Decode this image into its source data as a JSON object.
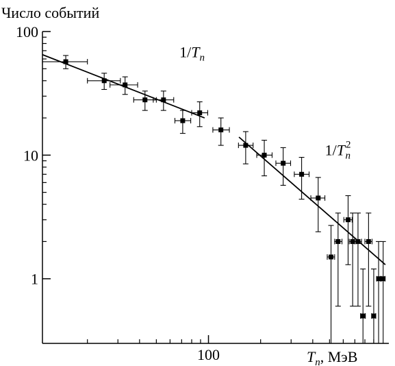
{
  "chart_data": {
    "type": "scatter",
    "ylabel": "Число событий",
    "xlabel_symbol": "T",
    "xlabel_subscript": "n",
    "xlabel_unit": ", МэВ",
    "x_scale": "log",
    "y_scale": "log",
    "xlim": [
      11,
      1100
    ],
    "ylim": [
      0.3,
      100
    ],
    "x_ticks": [
      {
        "value": 100,
        "label": "100"
      }
    ],
    "x_minor_ticks": [
      20,
      30,
      40,
      50,
      60,
      70,
      80,
      90,
      200,
      300,
      400,
      500,
      600,
      700,
      800,
      900
    ],
    "y_ticks": [
      {
        "value": 1,
        "label": "1"
      },
      {
        "value": 10,
        "label": "10"
      },
      {
        "value": 100,
        "label": "100"
      }
    ],
    "y_minor_ticks": [
      2,
      3,
      4,
      5,
      6,
      7,
      8,
      9,
      20,
      30,
      40,
      50,
      60,
      70,
      80,
      90
    ],
    "grid": false,
    "series": [
      {
        "marker": "square",
        "points": [
          {
            "x": 15,
            "y": 57,
            "xerr": [
              4,
              5
            ],
            "yerr": [
              7,
              7
            ]
          },
          {
            "x": 25,
            "y": 40,
            "xerr": [
              5,
              6
            ],
            "yerr": [
              6,
              6
            ]
          },
          {
            "x": 33,
            "y": 37,
            "xerr": [
              6,
              6
            ],
            "yerr": [
              6,
              6
            ]
          },
          {
            "x": 43,
            "y": 28,
            "xerr": [
              6,
              7
            ],
            "yerr": [
              5,
              5
            ]
          },
          {
            "x": 55,
            "y": 28,
            "xerr": [
              7,
              8
            ],
            "yerr": [
              5,
              5
            ]
          },
          {
            "x": 71,
            "y": 19,
            "xerr": [
              7,
              8
            ],
            "yerr": [
              4,
              4
            ]
          },
          {
            "x": 89,
            "y": 22,
            "xerr": [
              9,
              10
            ],
            "yerr": [
              5,
              5
            ]
          },
          {
            "x": 118,
            "y": 16,
            "xerr": [
              12,
              14
            ],
            "yerr": [
              4,
              4
            ]
          },
          {
            "x": 164,
            "y": 12,
            "xerr": [
              15,
              17
            ],
            "yerr": [
              3.5,
              3.5
            ]
          },
          {
            "x": 210,
            "y": 10,
            "xerr": [
              20,
              23
            ],
            "yerr": [
              3.2,
              3.2
            ]
          },
          {
            "x": 270,
            "y": 8.6,
            "xerr": [
              25,
              28
            ],
            "yerr": [
              2.9,
              2.9
            ]
          },
          {
            "x": 345,
            "y": 7,
            "xerr": [
              32,
              36
            ],
            "yerr": [
              2.6,
              2.6
            ]
          },
          {
            "x": 430,
            "y": 4.5,
            "xerr": [
              40,
              40
            ],
            "yerr": [
              2.1,
              2.1
            ]
          },
          {
            "x": 510,
            "y": 1.5,
            "xerr": [
              25,
              25
            ],
            "yerr": [
              1.2,
              1.2
            ]
          },
          {
            "x": 560,
            "y": 2,
            "xerr": [
              25,
              30
            ],
            "yerr": [
              1.4,
              1.4
            ]
          },
          {
            "x": 640,
            "y": 3,
            "xerr": [
              35,
              35
            ],
            "yerr": [
              1.7,
              1.7
            ]
          },
          {
            "x": 680,
            "y": 2,
            "xerr": [
              30,
              30
            ],
            "yerr": [
              1.4,
              1.4
            ]
          },
          {
            "x": 730,
            "y": 2,
            "xerr": [
              35,
              35
            ],
            "yerr": [
              1.4,
              1.4
            ]
          },
          {
            "x": 780,
            "y": 0.5,
            "xerr": [
              25,
              25
            ],
            "yerr": [
              0.7,
              0.7
            ]
          },
          {
            "x": 840,
            "y": 2,
            "xerr": [
              40,
              40
            ],
            "yerr": [
              1.4,
              1.4
            ]
          },
          {
            "x": 900,
            "y": 0.5,
            "xerr": [
              25,
              25
            ],
            "yerr": [
              0.7,
              0.7
            ]
          },
          {
            "x": 960,
            "y": 1,
            "xerr": [
              25,
              25
            ],
            "yerr": [
              1,
              1
            ]
          },
          {
            "x": 1020,
            "y": 1,
            "xerr": [
              25,
              25
            ],
            "yerr": [
              1,
              1
            ]
          }
        ]
      }
    ],
    "fit_lines": [
      {
        "label_prefix": "1/",
        "label_symbol": "T",
        "label_subscript": "n",
        "label_superscript": "",
        "x_range": [
          11,
          95
        ],
        "y_at_ends": [
          65,
          20
        ],
        "label_at": [
          68,
          62
        ]
      },
      {
        "label_prefix": "1/",
        "label_symbol": "T",
        "label_subscript": "n",
        "label_superscript": "2",
        "x_range": [
          150,
          1050
        ],
        "y_at_ends": [
          14,
          1.3
        ],
        "label_at": [
          470,
          10
        ]
      }
    ]
  }
}
